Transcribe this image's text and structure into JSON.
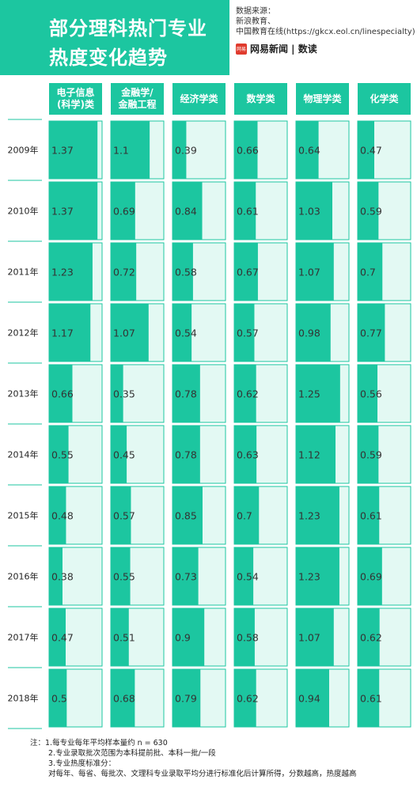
{
  "title": {
    "line1": "部分理科热门专业",
    "line2": "热度变化趋势"
  },
  "source": {
    "label": "数据来源：",
    "lines": [
      "新浪教育、",
      "中国教育在线(https://gkcx.eol.cn/linespecialty)"
    ],
    "brand_logo": "网易",
    "brand_text": "网易新闻 | 数读"
  },
  "colors": {
    "accent": "#1cc6a0",
    "light": "#e3f9f3",
    "divider": "#1cc6a0"
  },
  "chart_data": {
    "type": "bar",
    "categories": [
      "2009年",
      "2010年",
      "2011年",
      "2012年",
      "2013年",
      "2014年",
      "2015年",
      "2016年",
      "2017年",
      "2018年"
    ],
    "series": [
      {
        "name": "电子信息\n(科学)类",
        "values": [
          "1.37",
          "1.37",
          "1.23",
          "1.17",
          "0.66",
          "0.55",
          "0.48",
          "0.38",
          "0.47",
          "0.5"
        ]
      },
      {
        "name": "金融学/\n金融工程",
        "values": [
          "1.1",
          "0.69",
          "0.72",
          "1.07",
          "0.35",
          "0.45",
          "0.57",
          "0.55",
          "0.51",
          "0.68"
        ]
      },
      {
        "name": "经济学类",
        "values": [
          "0.39",
          "0.84",
          "0.58",
          "0.54",
          "0.78",
          "0.78",
          "0.85",
          "0.73",
          "0.9",
          "0.79"
        ]
      },
      {
        "name": "数学类",
        "values": [
          "0.66",
          "0.61",
          "0.67",
          "0.57",
          "0.62",
          "0.63",
          "0.7",
          "0.54",
          "0.58",
          "0.62"
        ]
      },
      {
        "name": "物理学类",
        "values": [
          "0.64",
          "1.03",
          "1.07",
          "0.98",
          "1.25",
          "1.12",
          "1.23",
          "1.23",
          "1.07",
          "0.94"
        ]
      },
      {
        "name": "化学类",
        "values": [
          "0.47",
          "0.59",
          "0.7",
          "0.77",
          "0.56",
          "0.59",
          "0.61",
          "0.69",
          "0.62",
          "0.61"
        ]
      }
    ],
    "xlim": [
      0,
      1.5
    ]
  },
  "notes": {
    "line1": "注：1.每专业每年平均样本量约 n = 630",
    "line2": "2.专业录取批次范围为本科提前批、本科一批/一段",
    "line3": "3.专业热度标准分：",
    "line4": "对每年、每省、每批次、文理科专业录取平均分进行标准化后计算所得，分数越高，热度越高"
  }
}
